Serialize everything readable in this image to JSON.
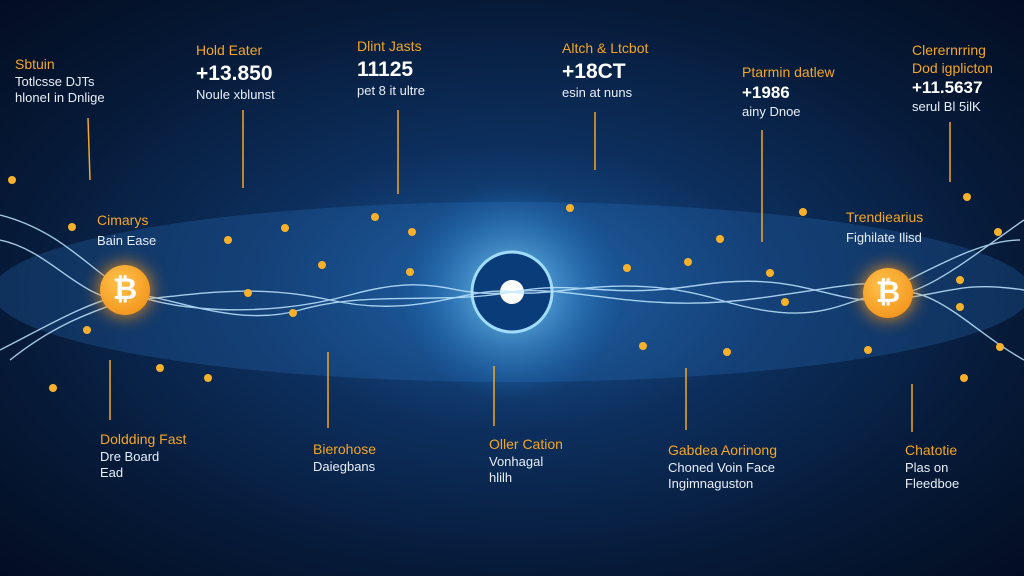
{
  "top_labels": [
    {
      "lines": [
        "Sbtuin",
        "Totlcsse DJTs",
        "hloneI in Dnlige"
      ]
    },
    {
      "lines": [
        "Hold Eater",
        "+13.850",
        "Noule xblunst"
      ]
    },
    {
      "lines": [
        "Dlint Jasts",
        "11125",
        "pet 8 it ultre"
      ]
    },
    {
      "lines": [
        "Altch & Ltcbot",
        "+18CT",
        "esin at nuns"
      ]
    },
    {
      "lines": [
        "Ptarmin datlew",
        "+1986",
        "ainy Dnoe"
      ]
    },
    {
      "lines": [
        "Clerernrring",
        "Dod igplicton",
        "+11.5637",
        "serul Bl 5ilK"
      ]
    }
  ],
  "middle_labels": [
    {
      "lines": [
        "Cimarys",
        "Bain Ease"
      ]
    },
    {
      "lines": [
        "Trendiearius",
        "Fighilate Ilisd"
      ]
    }
  ],
  "bottom_labels": [
    {
      "lines": [
        "Doldding Fast",
        "Dre Board",
        "Ead"
      ]
    },
    {
      "lines": [
        "Bierohose",
        "Daiegbans"
      ]
    },
    {
      "lines": [
        "Oller Cation",
        "Vonhagal",
        "hlilh"
      ]
    },
    {
      "lines": [
        "Gabdea Aorinong",
        "Choned Voin Face",
        "Ingimnaguston"
      ]
    },
    {
      "lines": [
        "Chatotie",
        "Plas on",
        "Fleedboe"
      ]
    }
  ],
  "coins": [
    "₿",
    "₿"
  ]
}
